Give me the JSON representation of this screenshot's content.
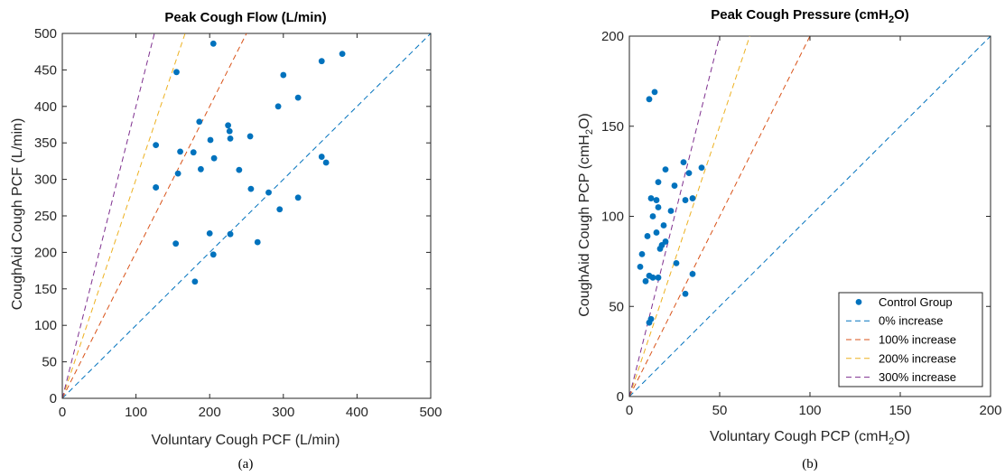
{
  "chart_data": [
    {
      "type": "scatter",
      "panel": "(a)",
      "title": "Peak Cough Flow (L/min)",
      "xlabel": "Voluntary Cough PCF (L/min)",
      "ylabel": "CoughAid Cough PCF (L/min)",
      "xlim": [
        0,
        500
      ],
      "ylim": [
        0,
        500
      ],
      "xticks": [
        0,
        100,
        200,
        300,
        400,
        500
      ],
      "yticks": [
        0,
        50,
        100,
        150,
        200,
        250,
        300,
        350,
        400,
        450,
        500
      ],
      "grid": false,
      "series": [
        {
          "name": "Control Group",
          "kind": "points",
          "color": "#0072BD",
          "x": [
            205,
            155,
            127,
            320,
            300,
            352,
            380,
            293,
            186,
            225,
            227,
            201,
            228,
            255,
            127,
            160,
            178,
            157,
            188,
            206,
            240,
            352,
            358,
            280,
            256,
            127,
            295,
            320,
            154,
            200,
            228,
            265,
            205,
            180
          ],
          "y": [
            486,
            447,
            347,
            412,
            443,
            462,
            472,
            400,
            379,
            374,
            366,
            354,
            356,
            359,
            289,
            338,
            337,
            308,
            314,
            329,
            313,
            331,
            323,
            282,
            287,
            289,
            259,
            275,
            212,
            226,
            225,
            214,
            197,
            160
          ]
        },
        {
          "name": "0% increase",
          "kind": "line",
          "color": "#0072BD",
          "slope": 1
        },
        {
          "name": "100% increase",
          "kind": "line",
          "color": "#D95319",
          "slope": 2
        },
        {
          "name": "200% increase",
          "kind": "line",
          "color": "#EDB120",
          "slope": 3
        },
        {
          "name": "300% increase",
          "kind": "line",
          "color": "#7E2F8E",
          "slope": 4
        }
      ]
    },
    {
      "type": "scatter",
      "panel": "(b)",
      "title": "Peak Cough Pressure (cmH",
      "title_sub": "2",
      "title_end": "O)",
      "xlabel": "Voluntary Cough PCP (cmH",
      "xlabel_sub": "2",
      "xlabel_end": "O)",
      "ylabel": "CoughAid Cough PCP (cmH",
      "ylabel_sub": "2",
      "ylabel_end": "O)",
      "xlim": [
        0,
        200
      ],
      "ylim": [
        0,
        200
      ],
      "xticks": [
        0,
        50,
        100,
        150,
        200
      ],
      "yticks": [
        0,
        50,
        100,
        150,
        200
      ],
      "grid": false,
      "legend_position": "bottom-right",
      "series": [
        {
          "name": "Control Group",
          "kind": "points",
          "color": "#0072BD",
          "x": [
            11,
            14,
            20,
            30,
            33,
            40,
            16,
            25,
            23,
            35,
            31,
            12,
            15,
            16,
            19,
            13,
            10,
            15,
            20,
            18,
            17,
            7,
            26,
            6,
            11,
            13,
            16,
            9,
            35,
            31,
            11,
            12
          ],
          "y": [
            165,
            169,
            126,
            130,
            124,
            127,
            119,
            117,
            103,
            110,
            109,
            110,
            109,
            105,
            95,
            100,
            89,
            91,
            86,
            84,
            82,
            79,
            74,
            72,
            67,
            66,
            66,
            64,
            68,
            57,
            41,
            43
          ]
        },
        {
          "name": "0% increase",
          "kind": "line",
          "color": "#0072BD",
          "slope": 1
        },
        {
          "name": "100% increase",
          "kind": "line",
          "color": "#D95319",
          "slope": 2
        },
        {
          "name": "200% increase",
          "kind": "line",
          "color": "#EDB120",
          "slope": 3
        },
        {
          "name": "300% increase",
          "kind": "line",
          "color": "#7E2F8E",
          "slope": 4
        }
      ],
      "legend": [
        "Control Group",
        "0% increase",
        "100% increase",
        "200% increase",
        "300% increase"
      ]
    }
  ]
}
